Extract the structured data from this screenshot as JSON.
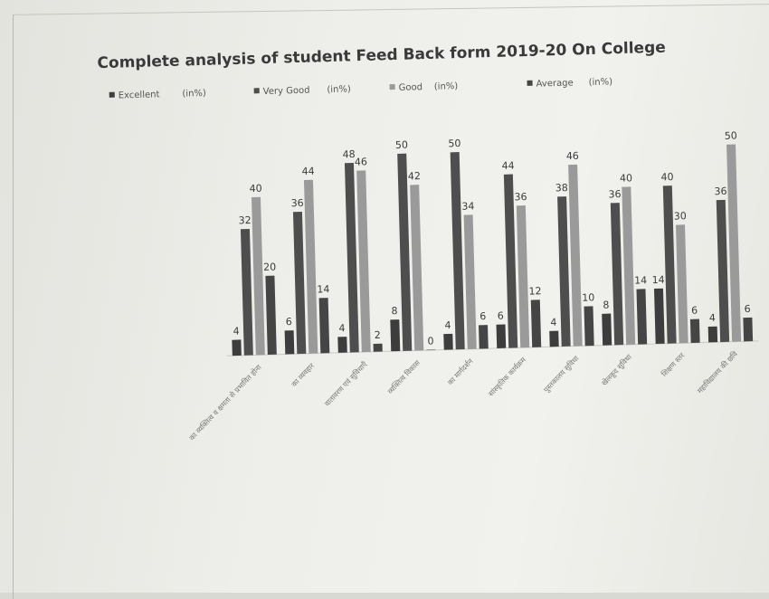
{
  "chart_data": {
    "type": "bar",
    "title": "Complete analysis of student Feed Back form 2019-20 On College",
    "legend": {
      "placement": "top",
      "entries": [
        {
          "name": "Excellent",
          "unit": "(in%)"
        },
        {
          "name": "Very Good",
          "unit": "(in%)"
        },
        {
          "name": "Good",
          "unit": "(in%)"
        },
        {
          "name": "Average",
          "unit": "(in%)"
        }
      ]
    },
    "categories": [
      "का व्यक्तित्व व क्षमता से प्रभावित होना",
      "का व्यवहार",
      "वातावरण एवं सुविधाएँ",
      "व्यक्तित्व विकास",
      "का मार्गदर्शन",
      "सांस्कृतिक कार्यक्रम",
      "पुस्तकालय सुविधा",
      "खेलकूद सुविधा",
      "शिक्षण स्तर",
      "महाविद्यालय की छवि"
    ],
    "series": [
      {
        "name": "Excellent",
        "values": [
          4,
          6,
          4,
          8,
          4,
          6,
          4,
          8,
          14,
          4
        ],
        "color": "#3d3d3d"
      },
      {
        "name": "Very Good",
        "values": [
          32,
          36,
          48,
          50,
          50,
          44,
          38,
          36,
          40,
          36
        ],
        "color": "#4e4e4e"
      },
      {
        "name": "Good",
        "values": [
          40,
          44,
          46,
          42,
          34,
          36,
          46,
          40,
          30,
          50
        ],
        "color": "#9a9a9a"
      },
      {
        "name": "Average",
        "values": [
          20,
          14,
          2,
          0,
          6,
          12,
          10,
          14,
          6,
          6
        ],
        "color": "#454545"
      }
    ],
    "ylim": [
      0,
      50
    ],
    "grid": false,
    "xlabel": "",
    "ylabel": ""
  }
}
